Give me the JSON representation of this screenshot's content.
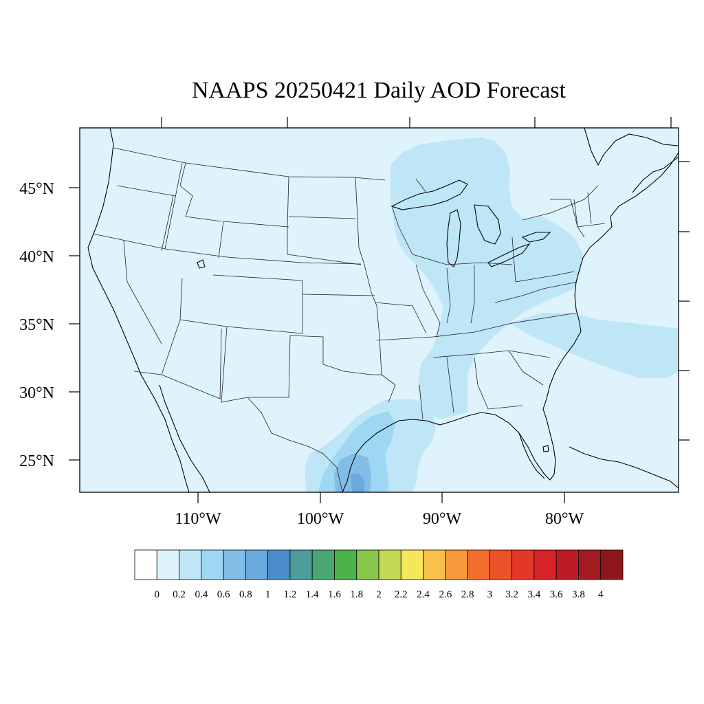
{
  "title": "NAAPS 20250421 Daily AOD Forecast",
  "map": {
    "projection": "lambert-conformal",
    "lat_labels": [
      "45°N",
      "40°N",
      "35°N",
      "30°N",
      "25°N"
    ],
    "lon_labels": [
      "110°W",
      "100°W",
      "90°W",
      "80°W"
    ]
  },
  "colorbar": {
    "labels": [
      "0",
      "0.2",
      "0.4",
      "0.6",
      "0.8",
      "1",
      "1.2",
      "1.4",
      "1.6",
      "1.8",
      "2",
      "2.2",
      "2.4",
      "2.6",
      "2.8",
      "3",
      "3.2",
      "3.4",
      "3.6",
      "3.8",
      "4"
    ],
    "colors": [
      "#ffffff",
      "#def3fb",
      "#bfe6f7",
      "#9dd7f3",
      "#82bde7",
      "#6aa9dc",
      "#4b8dca",
      "#4c9d9c",
      "#49a773",
      "#4bb34a",
      "#87c54b",
      "#c3d953",
      "#f5e75b",
      "#f9c04c",
      "#f79a3c",
      "#f36e2c",
      "#ec5129",
      "#e33727",
      "#d62228",
      "#bb1c25",
      "#a51b22",
      "#8e171d"
    ]
  },
  "chart_data": {
    "type": "heatmap",
    "title": "NAAPS 20250421 Daily AOD Forecast",
    "variable": "Daily AOD",
    "date": "20250421",
    "legend_levels": [
      0,
      0.2,
      0.4,
      0.6,
      0.8,
      1,
      1.2,
      1.4,
      1.6,
      1.8,
      2,
      2.2,
      2.4,
      2.6,
      2.8,
      3,
      3.2,
      3.4,
      3.6,
      3.8,
      4
    ],
    "regions": [
      {
        "area": "background (CONUS)",
        "aod": "0-0.2"
      },
      {
        "area": "Great Lakes / Upper Midwest",
        "aod": "0.2-0.4"
      },
      {
        "area": "Ohio Valley / Mid-Atlantic",
        "aod": "0.2-0.4"
      },
      {
        "area": "Lower Mississippi Valley",
        "aod": "0.2-0.4"
      },
      {
        "area": "Atlantic off Carolinas",
        "aod": "0.2-0.4"
      },
      {
        "area": "Texas Gulf Coast / NE Mexico",
        "aod": "0.4-0.8"
      },
      {
        "area": "South Texas / Tamaulipas",
        "aod": "0.8-1.0"
      }
    ]
  }
}
